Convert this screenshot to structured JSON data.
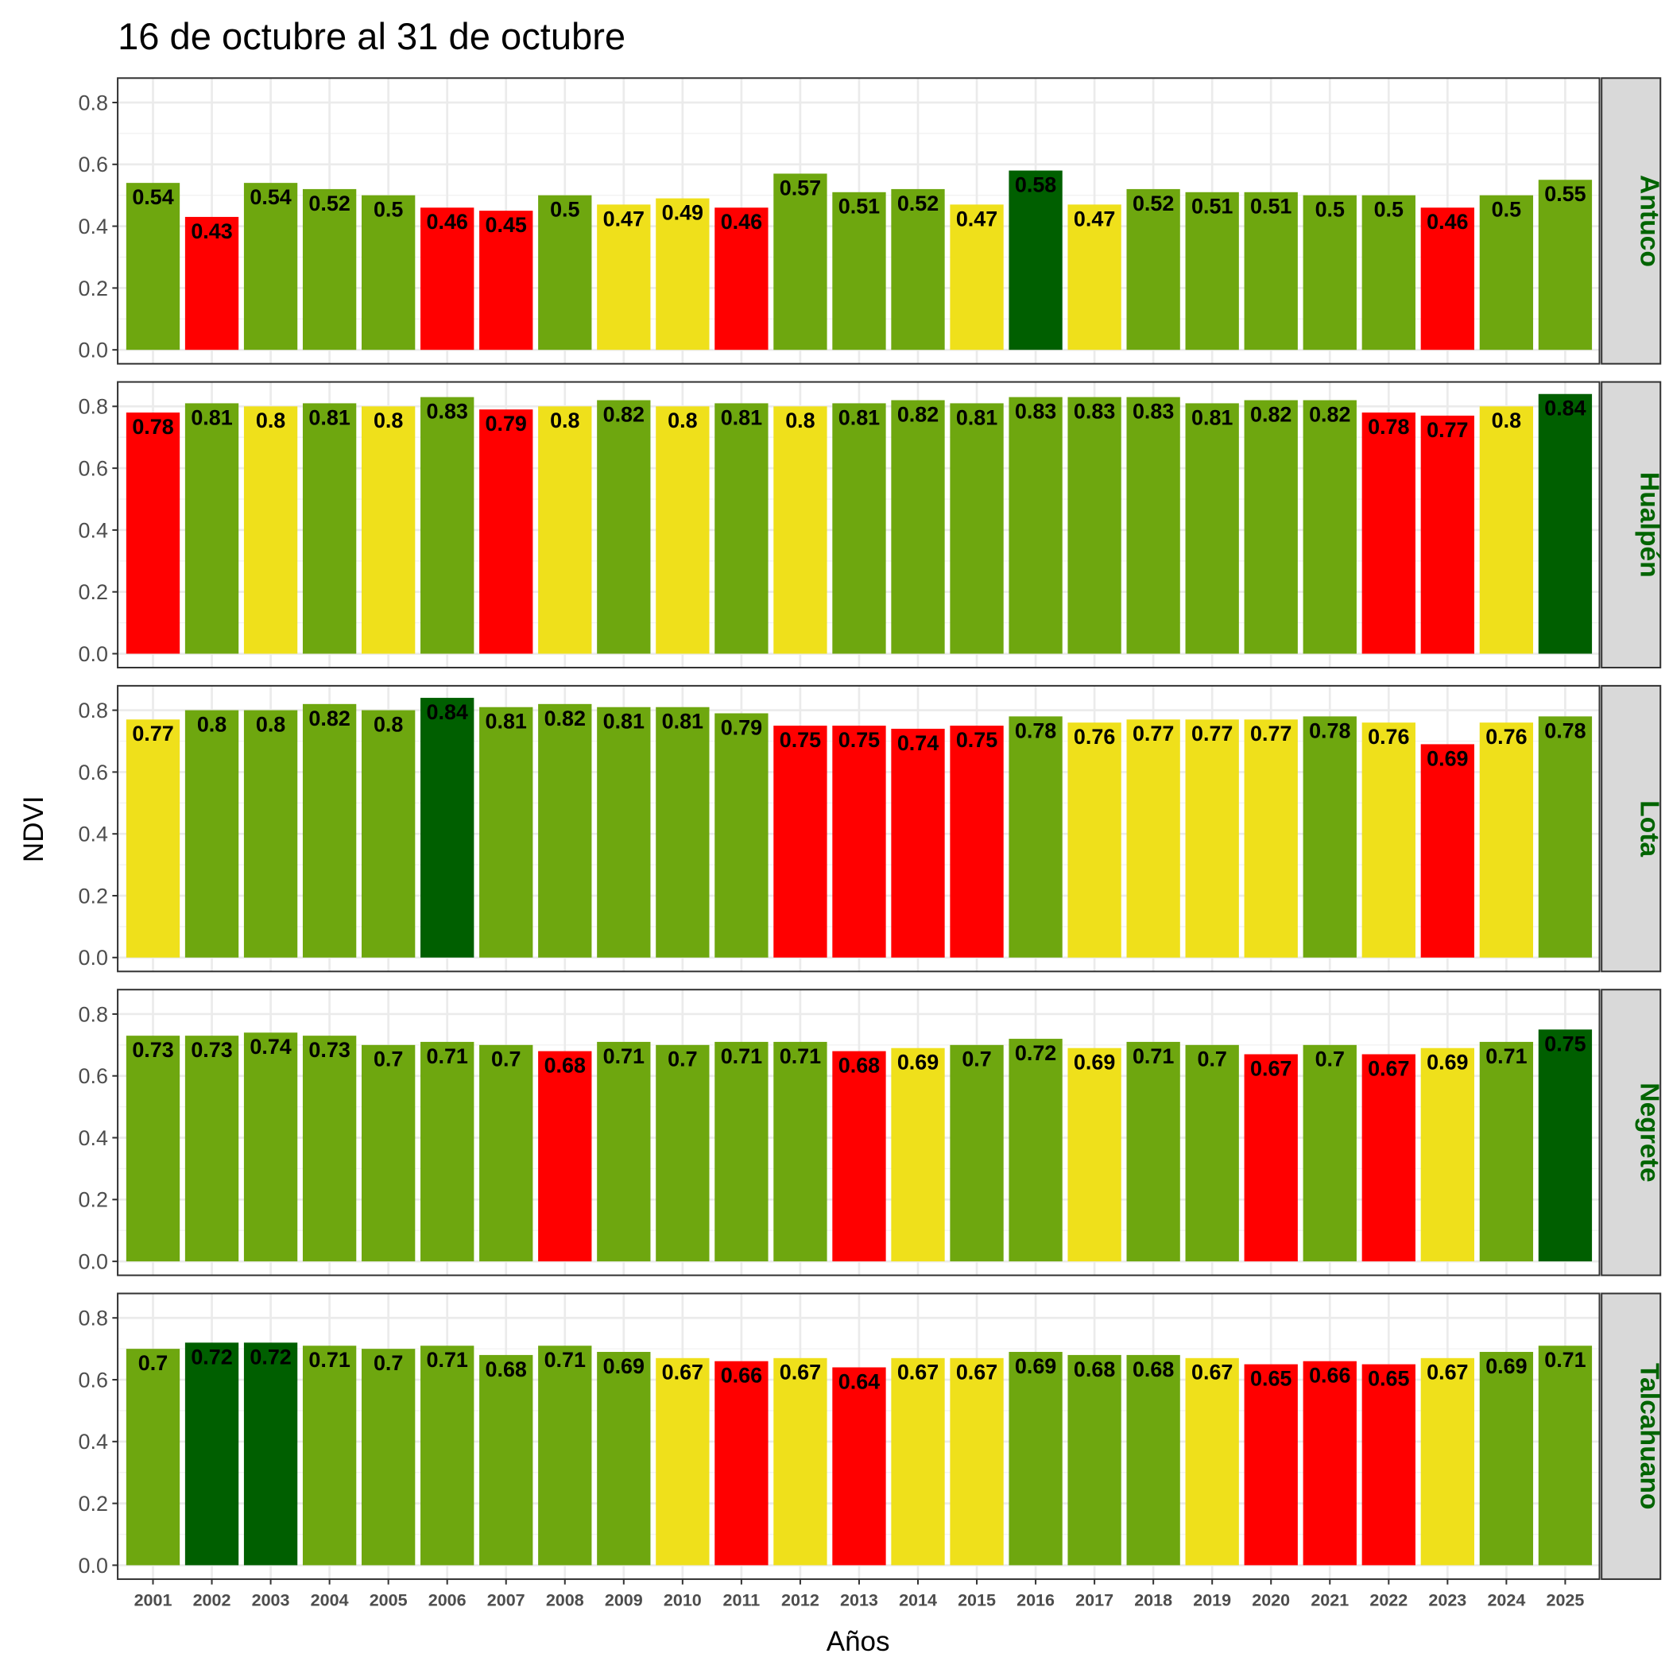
{
  "chart_data": {
    "type": "bar",
    "title": "16 de octubre al 31 de octubre",
    "xlabel": "Años",
    "ylabel": "NDVI",
    "ylim": [
      0,
      0.88
    ],
    "yticks": [
      "0.0",
      "0.2",
      "0.4",
      "0.6",
      "0.8"
    ],
    "ytick_values": [
      0,
      0.2,
      0.4,
      0.6,
      0.8
    ],
    "grid": true,
    "categories": [
      "2001",
      "2002",
      "2003",
      "2004",
      "2005",
      "2006",
      "2007",
      "2008",
      "2009",
      "2010",
      "2011",
      "2012",
      "2013",
      "2014",
      "2015",
      "2016",
      "2017",
      "2018",
      "2019",
      "2020",
      "2021",
      "2022",
      "2023",
      "2024",
      "2025"
    ],
    "class_colors": {
      "R": "#FF0000",
      "Y": "#EFE01B",
      "G": "#6EA70F",
      "D": "#005F00"
    },
    "strip_text_color": "#006400",
    "series": [
      {
        "name": "Antuco",
        "values": [
          0.54,
          0.43,
          0.54,
          0.52,
          0.5,
          0.46,
          0.45,
          0.5,
          0.47,
          0.49,
          0.46,
          0.57,
          0.51,
          0.52,
          0.47,
          0.58,
          0.47,
          0.52,
          0.51,
          0.51,
          0.5,
          0.5,
          0.46,
          0.5,
          0.55
        ],
        "classes": [
          "G",
          "R",
          "G",
          "G",
          "G",
          "R",
          "R",
          "G",
          "Y",
          "Y",
          "R",
          "G",
          "G",
          "G",
          "Y",
          "D",
          "Y",
          "G",
          "G",
          "G",
          "G",
          "G",
          "R",
          "G",
          "G"
        ]
      },
      {
        "name": "Hualpén",
        "values": [
          0.78,
          0.81,
          0.8,
          0.81,
          0.8,
          0.83,
          0.79,
          0.8,
          0.82,
          0.8,
          0.81,
          0.8,
          0.81,
          0.82,
          0.81,
          0.83,
          0.83,
          0.83,
          0.81,
          0.82,
          0.82,
          0.78,
          0.77,
          0.8,
          0.84
        ],
        "classes": [
          "R",
          "G",
          "Y",
          "G",
          "Y",
          "G",
          "R",
          "Y",
          "G",
          "Y",
          "G",
          "Y",
          "G",
          "G",
          "G",
          "G",
          "G",
          "G",
          "G",
          "G",
          "G",
          "R",
          "R",
          "Y",
          "D"
        ]
      },
      {
        "name": "Lota",
        "values": [
          0.77,
          0.8,
          0.8,
          0.82,
          0.8,
          0.84,
          0.81,
          0.82,
          0.81,
          0.81,
          0.79,
          0.75,
          0.75,
          0.74,
          0.75,
          0.78,
          0.76,
          0.77,
          0.77,
          0.77,
          0.78,
          0.76,
          0.69,
          0.76,
          0.78
        ],
        "classes": [
          "Y",
          "G",
          "G",
          "G",
          "G",
          "D",
          "G",
          "G",
          "G",
          "G",
          "G",
          "R",
          "R",
          "R",
          "R",
          "G",
          "Y",
          "Y",
          "Y",
          "Y",
          "G",
          "Y",
          "R",
          "Y",
          "G"
        ]
      },
      {
        "name": "Negrete",
        "values": [
          0.73,
          0.73,
          0.74,
          0.73,
          0.7,
          0.71,
          0.7,
          0.68,
          0.71,
          0.7,
          0.71,
          0.71,
          0.68,
          0.69,
          0.7,
          0.72,
          0.69,
          0.71,
          0.7,
          0.67,
          0.7,
          0.67,
          0.69,
          0.71,
          0.75
        ],
        "classes": [
          "G",
          "G",
          "G",
          "G",
          "G",
          "G",
          "G",
          "R",
          "G",
          "G",
          "G",
          "G",
          "R",
          "Y",
          "G",
          "G",
          "Y",
          "G",
          "G",
          "R",
          "G",
          "R",
          "Y",
          "G",
          "D"
        ]
      },
      {
        "name": "Talcahuano",
        "values": [
          0.7,
          0.72,
          0.72,
          0.71,
          0.7,
          0.71,
          0.68,
          0.71,
          0.69,
          0.67,
          0.66,
          0.67,
          0.64,
          0.67,
          0.67,
          0.69,
          0.68,
          0.68,
          0.67,
          0.65,
          0.66,
          0.65,
          0.67,
          0.69,
          0.71
        ],
        "classes": [
          "G",
          "D",
          "D",
          "G",
          "G",
          "G",
          "G",
          "G",
          "G",
          "Y",
          "R",
          "Y",
          "R",
          "Y",
          "Y",
          "G",
          "G",
          "G",
          "Y",
          "R",
          "R",
          "R",
          "Y",
          "G",
          "G"
        ]
      }
    ]
  }
}
